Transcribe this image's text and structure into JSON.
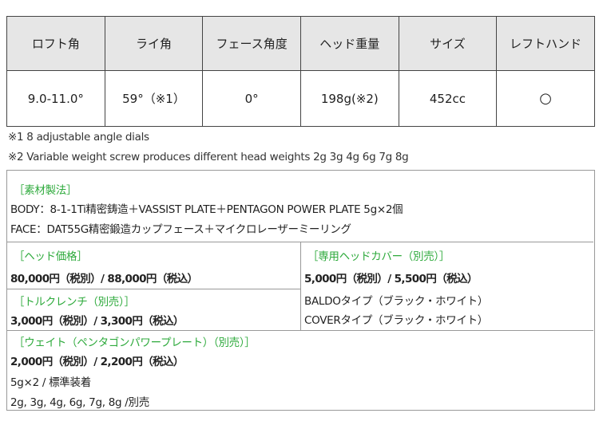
{
  "spec_table": {
    "headers": [
      "ロフト角",
      "ライ角",
      "フェース角度",
      "ヘッド重量",
      "サイズ",
      "レフトハンド"
    ],
    "values": [
      "9.0-11.0°",
      "59°（※1）",
      "0°",
      "198g(※2)",
      "452cc",
      "○"
    ]
  },
  "notes": [
    "※1  8 adjustable angle dials",
    "※2 Variable weight screw produces different head weights 2g 3g 4g 6g 7g 8g"
  ],
  "material": {
    "title": "［素材製法］",
    "body": "BODY：8-1-1Ti精密鋳造＋VASSIST PLATE＋PENTAGON POWER PLATE 5g×2個",
    "face": "FACE：DAT55G精密鍛造カップフェース＋マイクロレーザーミーリング"
  },
  "head_price": {
    "title": "［ヘッド価格］",
    "price": "80,000円（税別）/ 88,000円（税込）"
  },
  "torque_wrench": {
    "title": "［トルクレンチ（別売）］",
    "price": "3,000円（税別）/ 3,300円（税込）"
  },
  "head_cover": {
    "title": "［専用ヘッドカバー（別売）］",
    "price": "5,000円（税別）/ 5,500円（税込）",
    "types": [
      "BALDOタイプ（ブラック・ホワイト）",
      "COVERタイプ（ブラック・ホワイト）"
    ]
  },
  "weight": {
    "title": "［ウェイト（ペンタゴンパワープレート）（別売）］",
    "price": "2,000円（税別）/ 2,200円（税込）",
    "standard": "5g×2 / 標準装着",
    "optional": "2g, 3g, 4g, 6g, 7g, 8g /別売"
  },
  "colors": {
    "accent_green": "#2eaa3c",
    "header_bg": "#e6e6e6"
  }
}
